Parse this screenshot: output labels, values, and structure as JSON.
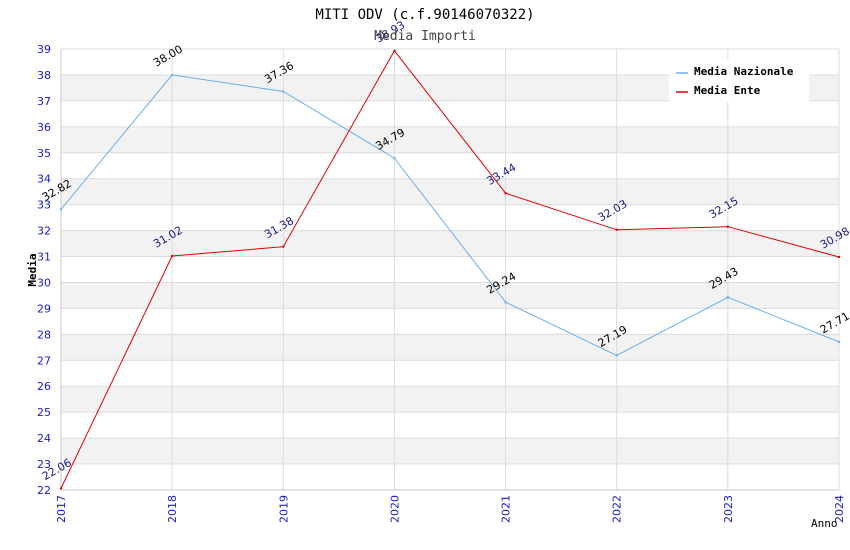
{
  "chart_data": {
    "type": "line",
    "title": "MITI ODV (c.f.90146070322)",
    "subtitle": "Media Importi",
    "xlabel": "Anno",
    "ylabel": "Media",
    "categories": [
      "2017",
      "2018",
      "2019",
      "2020",
      "2021",
      "2022",
      "2023",
      "2024"
    ],
    "ylim": [
      22,
      39
    ],
    "yticks": [
      22,
      23,
      24,
      25,
      26,
      27,
      28,
      29,
      30,
      31,
      32,
      33,
      34,
      35,
      36,
      37,
      38,
      39
    ],
    "grid": true,
    "legend_position": "top-right",
    "series": [
      {
        "name": "Media Nazionale",
        "color": "#6aaee8",
        "label_color": "#000000",
        "values": [
          32.82,
          38.0,
          37.36,
          34.79,
          29.24,
          27.19,
          29.43,
          27.71
        ],
        "labels": [
          "32.82",
          "38.00",
          "37.36",
          "34.79",
          "29.24",
          "27.19",
          "29.43",
          "27.71"
        ]
      },
      {
        "name": "Media Ente",
        "color": "#e00000",
        "label_color": "#1a1a80",
        "values": [
          22.06,
          31.02,
          31.38,
          38.93,
          33.44,
          32.03,
          32.15,
          30.98
        ],
        "labels": [
          "22.06",
          "31.02",
          "31.38",
          "38.93",
          "33.44",
          "32.03",
          "32.15",
          "30.98"
        ]
      }
    ]
  }
}
